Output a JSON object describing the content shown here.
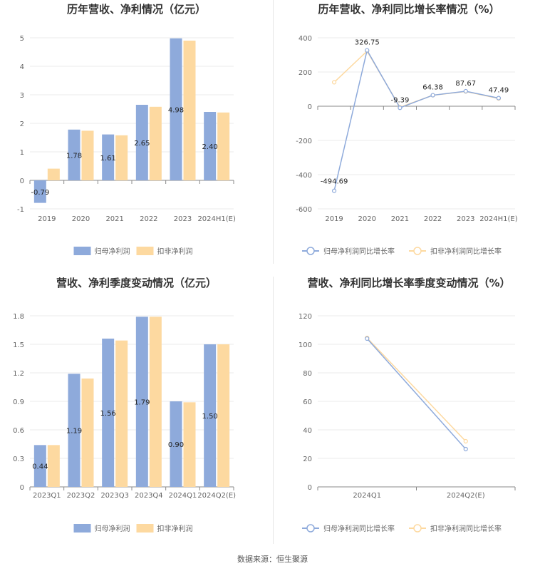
{
  "colors": {
    "primary": "#8eaadb",
    "secondary": "#fdd9a0",
    "grid": "#ebebeb",
    "axis": "#888888"
  },
  "source": "数据来源：恒生聚源",
  "chart_data": [
    {
      "type": "bar",
      "title": "历年营收、净利情况（亿元）",
      "categories": [
        "2019",
        "2020",
        "2021",
        "2022",
        "2023",
        "2024H1(E)"
      ],
      "series": [
        {
          "name": "归母净利润",
          "values": [
            -0.79,
            1.78,
            1.61,
            2.65,
            4.98,
            2.4
          ],
          "labels": [
            "-0.79",
            "1.78",
            "1.61",
            "2.65",
            "4.98",
            "2.40"
          ]
        },
        {
          "name": "扣非净利润",
          "values": [
            0.41,
            1.74,
            1.58,
            2.58,
            4.9,
            2.38
          ]
        }
      ],
      "yticks": [
        "-1",
        "0",
        "1",
        "2",
        "3",
        "4",
        "5"
      ],
      "ylim": [
        -1,
        5
      ],
      "legend": "bottom"
    },
    {
      "type": "line",
      "title": "历年营收、净利同比增长率情况（%）",
      "categories": [
        "2019",
        "2020",
        "2021",
        "2022",
        "2023",
        "2024H1(E)"
      ],
      "series": [
        {
          "name": "归母净利润同比增长率",
          "values": [
            -494.69,
            326.75,
            -9.39,
            64.38,
            87.67,
            47.49
          ],
          "labels": [
            "-494.69",
            "326.75",
            "-9.39",
            "64.38",
            "87.67",
            "47.49"
          ]
        },
        {
          "name": "扣非净利润同比增长率",
          "values": [
            140,
            322,
            -6,
            64,
            86,
            45
          ]
        }
      ],
      "yticks": [
        "-600",
        "-400",
        "-200",
        "0",
        "200",
        "400"
      ],
      "ylim": [
        -600,
        400
      ],
      "legend": "bottom"
    },
    {
      "type": "bar",
      "title": "营收、净利季度变动情况（亿元）",
      "categories": [
        "2023Q1",
        "2023Q2",
        "2023Q3",
        "2023Q4",
        "2024Q1",
        "2024Q2(E)"
      ],
      "series": [
        {
          "name": "归母净利润",
          "values": [
            0.44,
            1.19,
            1.56,
            1.79,
            0.9,
            1.5
          ],
          "labels": [
            "0.44",
            "1.19",
            "1.56",
            "1.79",
            "0.90",
            "1.50"
          ]
        },
        {
          "name": "扣非净利润",
          "values": [
            0.44,
            1.14,
            1.54,
            1.79,
            0.89,
            1.5
          ]
        }
      ],
      "yticks": [
        "0",
        "0.3",
        "0.6",
        "0.9",
        "1.2",
        "1.5",
        "1.8"
      ],
      "ylim": [
        0,
        1.8
      ],
      "legend": "bottom"
    },
    {
      "type": "line",
      "title": "营收、净利同比增长率季度变动情况（%）",
      "categories": [
        "2024Q1",
        "2024Q2(E)"
      ],
      "series": [
        {
          "name": "归母净利润同比增长率",
          "values": [
            104,
            26.5
          ]
        },
        {
          "name": "扣非净利润同比增长率",
          "values": [
            104.5,
            32
          ]
        }
      ],
      "yticks": [
        "0",
        "20",
        "40",
        "60",
        "80",
        "100",
        "120"
      ],
      "ylim": [
        0,
        120
      ],
      "legend": "bottom"
    }
  ]
}
